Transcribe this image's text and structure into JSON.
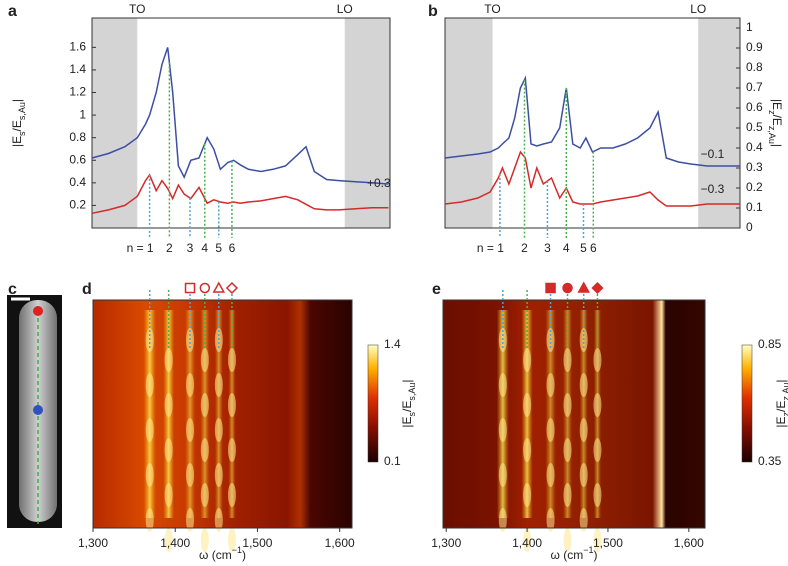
{
  "chart_data": [
    {
      "type": "line",
      "panel": "a",
      "x": [
        1300,
        1320,
        1340,
        1355,
        1365,
        1370,
        1378,
        1385,
        1392,
        1398,
        1405,
        1412,
        1420,
        1430,
        1440,
        1448,
        1456,
        1465,
        1472,
        1480,
        1490,
        1505,
        1520,
        1535,
        1550,
        1560,
        1570,
        1585,
        1600,
        1620,
        1640,
        1660
      ],
      "xlim": [
        1300,
        1662
      ],
      "ylim": [
        0,
        1.86
      ],
      "yticks": [
        0.2,
        0.4,
        0.6,
        0.8,
        1,
        1.2,
        1.4,
        1.6
      ],
      "axis_side": "left",
      "ylabel": [
        "|E",
        "s",
        "/E",
        "s,Au",
        "|"
      ],
      "shaded": [
        [
          1300,
          1355
        ],
        [
          1607,
          1662
        ]
      ],
      "shade_color": "#d4d4d4",
      "region_labels": [
        {
          "text": "TO",
          "x": 1355
        },
        {
          "text": "LO",
          "x": 1607
        }
      ],
      "series": [
        {
          "color": "#3c4fa3",
          "values": [
            0.62,
            0.66,
            0.72,
            0.8,
            0.92,
            1.0,
            1.2,
            1.45,
            1.6,
            1.2,
            0.55,
            0.45,
            0.6,
            0.62,
            0.8,
            0.7,
            0.52,
            0.58,
            0.6,
            0.56,
            0.52,
            0.5,
            0.52,
            0.55,
            0.65,
            0.72,
            0.5,
            0.43,
            0.42,
            0.41,
            0.4,
            0.39
          ]
        },
        {
          "color": "#d42a2a",
          "values": [
            0.13,
            0.16,
            0.2,
            0.28,
            0.42,
            0.47,
            0.33,
            0.42,
            0.35,
            0.26,
            0.38,
            0.3,
            0.26,
            0.36,
            0.22,
            0.25,
            0.23,
            0.22,
            0.23,
            0.22,
            0.23,
            0.24,
            0.26,
            0.28,
            0.25,
            0.21,
            0.17,
            0.16,
            0.16,
            0.17,
            0.18,
            0.18
          ]
        }
      ],
      "offset_labels": [
        {
          "text": "+0.3",
          "x": 1634,
          "y": 0.39
        }
      ],
      "modes": {
        "labels": [
          "n = 1",
          "2",
          "3",
          "4",
          "5",
          "6"
        ],
        "x": [
          1370,
          1394,
          1419,
          1437,
          1454,
          1470
        ],
        "colors": [
          "#4aa3df",
          "#4caf50"
        ]
      }
    },
    {
      "type": "line",
      "panel": "b",
      "x": [
        1300,
        1320,
        1340,
        1355,
        1365,
        1370,
        1378,
        1385,
        1392,
        1398,
        1405,
        1412,
        1420,
        1430,
        1440,
        1448,
        1456,
        1465,
        1472,
        1480,
        1490,
        1505,
        1520,
        1535,
        1550,
        1560,
        1570,
        1585,
        1600,
        1620,
        1640,
        1660
      ],
      "xlim": [
        1300,
        1660
      ],
      "ylim": [
        0,
        1.05
      ],
      "yticks": [
        0,
        0.1,
        0.2,
        0.3,
        0.4,
        0.5,
        0.6,
        0.7,
        0.8,
        0.9,
        1
      ],
      "axis_side": "right",
      "ylabel": [
        "|E",
        "z",
        "/E",
        "z,Au",
        "|"
      ],
      "shaded": [
        [
          1300,
          1358
        ],
        [
          1609,
          1660
        ]
      ],
      "shade_color": "#d4d4d4",
      "region_labels": [
        {
          "text": "TO",
          "x": 1358
        },
        {
          "text": "LO",
          "x": 1609
        }
      ],
      "series": [
        {
          "color": "#3c4fa3",
          "values": [
            0.35,
            0.36,
            0.37,
            0.38,
            0.4,
            0.42,
            0.45,
            0.55,
            0.7,
            0.75,
            0.42,
            0.41,
            0.42,
            0.43,
            0.5,
            0.7,
            0.42,
            0.4,
            0.45,
            0.38,
            0.4,
            0.4,
            0.42,
            0.45,
            0.5,
            0.58,
            0.35,
            0.33,
            0.32,
            0.31,
            0.31,
            0.31
          ]
        },
        {
          "color": "#d42a2a",
          "values": [
            0.12,
            0.13,
            0.15,
            0.18,
            0.25,
            0.3,
            0.22,
            0.3,
            0.38,
            0.35,
            0.2,
            0.3,
            0.22,
            0.25,
            0.15,
            0.2,
            0.13,
            0.12,
            0.12,
            0.12,
            0.13,
            0.14,
            0.15,
            0.16,
            0.18,
            0.14,
            0.11,
            0.11,
            0.11,
            0.12,
            0.12,
            0.12
          ]
        }
      ],
      "offset_labels": [
        {
          "text": "−0.1",
          "x": 1612,
          "y": 0.365
        },
        {
          "text": "−0.3",
          "x": 1612,
          "y": 0.19
        }
      ],
      "modes": {
        "labels": [
          "n = 1",
          "2",
          "3",
          "4",
          "5",
          "6"
        ],
        "x": [
          1367,
          1397,
          1425,
          1448,
          1469,
          1481
        ],
        "colors": [
          "#4aa3df",
          "#4caf50"
        ]
      }
    },
    {
      "type": "heatmap",
      "panel": "d",
      "xlim": [
        1300,
        1615
      ],
      "xticks": [
        {
          "value": 1300,
          "label": "1,300"
        },
        {
          "value": 1400,
          "label": "1,400"
        },
        {
          "value": 1500,
          "label": "1,500"
        },
        {
          "value": 1600,
          "label": "1,600"
        }
      ],
      "xlabel": [
        "ω (cm",
        "−1",
        ")"
      ],
      "colorbar": {
        "lim": [
          0.1,
          1.4
        ],
        "ticks": [
          0.1,
          1.4
        ],
        "label": [
          "|E",
          "s",
          "/E",
          "s,Au",
          "|"
        ]
      },
      "modes": {
        "x": [
          1369,
          1392,
          1418,
          1436,
          1453,
          1469
        ],
        "colors": [
          "#4aa3df",
          "#4caf50"
        ],
        "markers": [
          null,
          null,
          "square",
          "circle",
          "triangle",
          "diamond"
        ],
        "marker_fill": false,
        "marker_color": "#d42a2a"
      }
    },
    {
      "type": "heatmap",
      "panel": "e",
      "xlim": [
        1296,
        1620
      ],
      "xticks": [
        {
          "value": 1300,
          "label": "1,300"
        },
        {
          "value": 1400,
          "label": "1,400"
        },
        {
          "value": 1500,
          "label": "1,500"
        },
        {
          "value": 1600,
          "label": "1,600"
        }
      ],
      "xlabel": [
        "ω (cm",
        "−1",
        ")"
      ],
      "colorbar": {
        "lim": [
          0.35,
          0.85
        ],
        "ticks": [
          0.35,
          0.85
        ],
        "label": [
          "|E",
          "z",
          "/E",
          "z,Au",
          "|"
        ]
      },
      "modes": {
        "x": [
          1370,
          1400,
          1429,
          1450,
          1470,
          1487
        ],
        "colors": [
          "#4aa3df",
          "#4caf50"
        ],
        "markers": [
          null,
          null,
          "square",
          "circle",
          "triangle",
          "diamond"
        ],
        "marker_fill": true,
        "marker_color": "#d42a2a"
      }
    }
  ],
  "image_panel": {
    "panel": "c"
  }
}
